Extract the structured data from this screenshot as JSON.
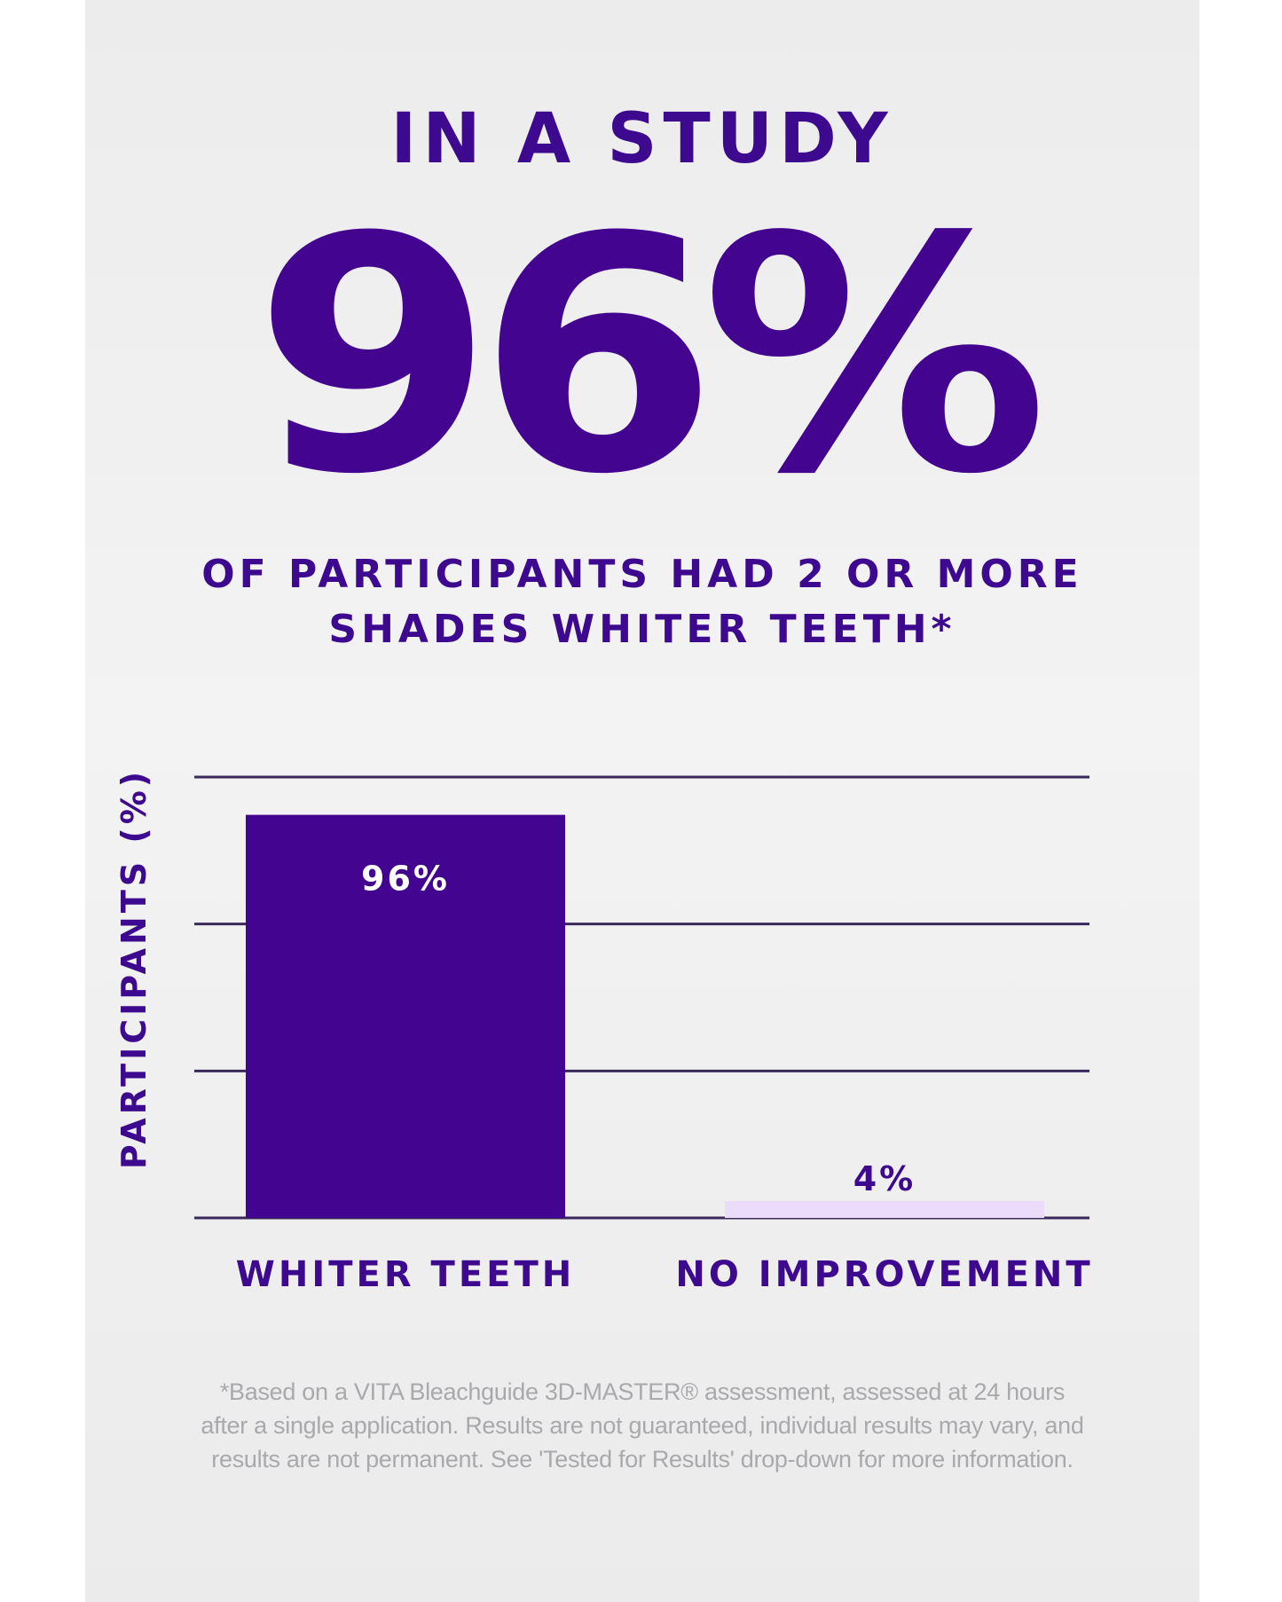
{
  "headline": {
    "eyebrow": "IN A STUDY",
    "hero": "96%",
    "subhead_line1": "OF PARTICIPANTS HAD 2 OR MORE",
    "subhead_line2": "SHADES WHITER TEETH*"
  },
  "chart_data": {
    "type": "bar",
    "categories": [
      "WHITER TEETH",
      "NO IMPROVEMENT"
    ],
    "values": [
      96,
      4
    ],
    "value_labels": [
      "96%",
      "4%"
    ],
    "ylabel": "PARTICIPANTS (%)",
    "ylim": [
      0,
      105
    ],
    "gridlines": [
      35,
      70,
      105
    ],
    "bar_colors": [
      "#43058f",
      "#ebdcfb"
    ],
    "label_colors": [
      "#ffffff",
      "#3d0a8f"
    ],
    "grid": true,
    "legend": "none"
  },
  "footnote": "*Based on a VITA Bleachguide 3D-MASTER® assessment, assessed at 24 hours after a single application. Results are not guaranteed, individual results may vary, and results are not permanent. See 'Tested for Results' drop-down for more information.",
  "colors": {
    "primary": "#43058f",
    "text": "#3d0a8f",
    "light_bar": "#ebdcfb",
    "footnote": "#a9a9ad"
  }
}
